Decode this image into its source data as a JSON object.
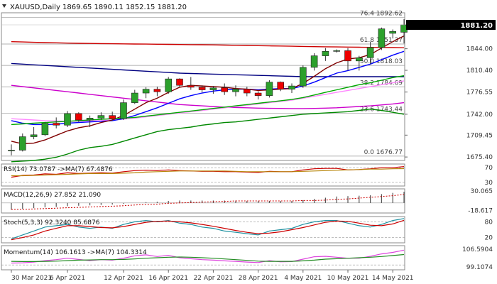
{
  "header": {
    "symbol_label": "XAUUSD,Daily",
    "ohlc_label": "1869.65 1890.11 1852.15 1881.20"
  },
  "chart_data": [
    {
      "type": "candlestick",
      "name": "price",
      "ylim": [
        1670,
        1900
      ],
      "y_ticks": [
        1675.4,
        1709.45,
        1742.0,
        1776.55,
        1810.4,
        1844.0
      ],
      "y_tick_labels": [
        "1675.40",
        "1709.45",
        "1742.00",
        "1776.55",
        "1810.40",
        "1844.00"
      ],
      "current_price_label": "1881.20",
      "current_price": 1881.2,
      "x_labels": [
        "30 Mar 2021",
        "6 Apr 2021",
        "12 Apr 2021",
        "16 Apr 2021",
        "22 Apr 2021",
        "28 Apr 2021",
        "4 May 2021",
        "10 May 2021",
        "14 May 2021"
      ],
      "x_label_bars": [
        0,
        5,
        10,
        14,
        18,
        22,
        26,
        30,
        34
      ],
      "candles": [
        [
          1686,
          1695,
          1678,
          1686
        ],
        [
          1686,
          1712,
          1684,
          1707
        ],
        [
          1707,
          1722,
          1703,
          1710
        ],
        [
          1710,
          1730,
          1708,
          1728
        ],
        [
          1728,
          1737,
          1720,
          1725
        ],
        [
          1725,
          1747,
          1722,
          1743
        ],
        [
          1743,
          1745,
          1730,
          1733
        ],
        [
          1733,
          1740,
          1722,
          1736
        ],
        [
          1736,
          1745,
          1733,
          1740
        ],
        [
          1740,
          1746,
          1732,
          1735
        ],
        [
          1735,
          1765,
          1733,
          1760
        ],
        [
          1760,
          1780,
          1758,
          1775
        ],
        [
          1775,
          1784,
          1767,
          1781
        ],
        [
          1781,
          1785,
          1770,
          1777
        ],
        [
          1777,
          1800,
          1774,
          1797
        ],
        [
          1797,
          1798,
          1785,
          1787
        ],
        [
          1787,
          1800,
          1780,
          1784
        ],
        [
          1784,
          1787,
          1776,
          1780
        ],
        [
          1780,
          1786,
          1774,
          1783
        ],
        [
          1783,
          1790,
          1772,
          1777
        ],
        [
          1777,
          1787,
          1770,
          1781
        ],
        [
          1781,
          1785,
          1770,
          1775
        ],
        [
          1775,
          1778,
          1765,
          1771
        ],
        [
          1771,
          1795,
          1768,
          1792
        ],
        [
          1792,
          1793,
          1778,
          1781
        ],
        [
          1781,
          1790,
          1775,
          1786
        ],
        [
          1786,
          1818,
          1783,
          1815
        ],
        [
          1815,
          1837,
          1810,
          1833
        ],
        [
          1833,
          1845,
          1825,
          1840
        ],
        [
          1840,
          1843,
          1838,
          1841
        ],
        [
          1841,
          1845,
          1810,
          1825
        ],
        [
          1825,
          1833,
          1810,
          1830
        ],
        [
          1830,
          1855,
          1820,
          1846
        ],
        [
          1846,
          1877,
          1842,
          1875
        ],
        [
          1868,
          1874,
          1860,
          1871
        ],
        [
          1869.65,
          1890.11,
          1852.15,
          1881.2
        ]
      ],
      "fibonacci": [
        {
          "label": "76.4 1892.62",
          "value": 1892.62
        },
        {
          "label": "61.8 1851.37",
          "value": 1851.37
        },
        {
          "label": "50.0 1818.03",
          "value": 1818.03
        },
        {
          "label": "38.2 1784.69",
          "value": 1784.69
        },
        {
          "label": "23.6 1743.44",
          "value": 1743.44
        },
        {
          "label": "0.0 1676.77",
          "value": 1676.77
        }
      ],
      "overlays": [
        {
          "color": "#000080",
          "values": [
            1821,
            1820,
            1819,
            1818,
            1817,
            1816,
            1815,
            1814,
            1813,
            1812,
            1811,
            1810,
            1809,
            1808,
            1807,
            1806,
            1805.5,
            1805,
            1804.5,
            1804,
            1803.5,
            1803,
            1802.5,
            1802,
            1801.5,
            1801,
            1800.5,
            1800.5,
            1800.5,
            1800.5,
            1800.5,
            1800.5,
            1800.5,
            1800.5,
            1800.5,
            1800.5
          ]
        },
        {
          "color": "#cc0000",
          "values": [
            1855,
            1854.5,
            1854,
            1853.6,
            1853.2,
            1852.8,
            1852.5,
            1852.2,
            1852,
            1851.8,
            1851.6,
            1851.4,
            1851.2,
            1851,
            1850.8,
            1850.6,
            1850.4,
            1850.2,
            1850,
            1849.7,
            1849.4,
            1849.1,
            1848.8,
            1848.5,
            1848.2,
            1847.9,
            1847.6,
            1847.3,
            1847,
            1846.8,
            1846.6,
            1846.4,
            1846.2,
            1846,
            1845.8,
            1845.5
          ]
        },
        {
          "color": "#cc00cc",
          "values": [
            1787,
            1785,
            1783,
            1781,
            1779,
            1777,
            1775,
            1773,
            1771,
            1769,
            1767,
            1765,
            1763,
            1761,
            1759,
            1757,
            1756,
            1755,
            1754,
            1753,
            1752.5,
            1752,
            1751.5,
            1751.2,
            1751,
            1750.8,
            1750.8,
            1751,
            1751.5,
            1752,
            1753,
            1754,
            1755,
            1756.5,
            1758,
            1760
          ]
        },
        {
          "color": "#ff88ff",
          "values": [
            1735,
            1734,
            1733,
            1732,
            1731.5,
            1731,
            1731,
            1731.5,
            1732,
            1733,
            1734.5,
            1736,
            1738,
            1740,
            1742,
            1744,
            1746,
            1748,
            1750,
            1752,
            1754,
            1756,
            1758,
            1760,
            1762,
            1764,
            1767,
            1770,
            1773,
            1776,
            1779,
            1782,
            1785,
            1788,
            1791,
            1794
          ]
        },
        {
          "color": "#0000ff",
          "values": [
            1732,
            1728,
            1726,
            1726,
            1726.5,
            1728,
            1729,
            1730,
            1731,
            1732,
            1735,
            1740,
            1746,
            1752,
            1759,
            1766,
            1771,
            1775,
            1778,
            1780,
            1781,
            1781,
            1780,
            1781,
            1782,
            1782,
            1786,
            1792,
            1799,
            1806,
            1810,
            1815,
            1820,
            1827,
            1834,
            1840
          ]
        },
        {
          "color": "#800000",
          "values": [
            1700,
            1696,
            1697,
            1702,
            1709,
            1716,
            1721,
            1724,
            1729,
            1733,
            1740,
            1750,
            1760,
            1767,
            1776,
            1784,
            1787,
            1786,
            1785,
            1784,
            1782,
            1781,
            1779,
            1780,
            1781,
            1782,
            1790,
            1801,
            1813,
            1822,
            1828,
            1830,
            1835,
            1845,
            1855,
            1864
          ]
        },
        {
          "color": "#00aa00",
          "values": [
            1726,
            1727,
            1728,
            1729,
            1730,
            1731,
            1732,
            1733,
            1734,
            1735,
            1736,
            1737,
            1739,
            1741,
            1743,
            1745,
            1747,
            1749,
            1751,
            1753,
            1755,
            1757,
            1759,
            1761,
            1763,
            1765,
            1768,
            1772,
            1776,
            1780,
            1784,
            1788,
            1791,
            1795,
            1799,
            1802
          ]
        },
        {
          "color": "#008800",
          "values": [
            1668,
            1669,
            1670,
            1672,
            1675,
            1680,
            1686,
            1690,
            1692,
            1695,
            1700,
            1705,
            1710,
            1715,
            1718,
            1720,
            1722,
            1725,
            1727,
            1729,
            1730,
            1732,
            1734,
            1736,
            1738,
            1740,
            1742,
            1743,
            1744,
            1745,
            1746,
            1748,
            1750,
            1748,
            1745,
            1742
          ]
        }
      ]
    },
    {
      "type": "line",
      "name": "RSI(14)",
      "label": "RSI(14) 73.0787 ->MA(7) 67.4876",
      "ylim": [
        20,
        80
      ],
      "y_ticks": [
        30,
        70
      ],
      "y_tick_labels": [
        "30",
        "70"
      ],
      "level_lines": [
        30,
        70
      ],
      "series": [
        {
          "color": "#cc0000",
          "values": [
            44,
            49,
            50,
            53,
            52,
            56,
            54,
            55,
            56,
            55,
            59,
            62,
            63,
            62,
            64,
            62,
            61,
            60,
            60,
            59,
            59,
            58,
            57,
            60,
            59,
            59,
            64,
            67,
            68,
            68,
            64,
            65,
            67,
            70,
            70,
            73
          ]
        },
        {
          "color": "#b8860b",
          "values": [
            48,
            48,
            49,
            50,
            51,
            52,
            53,
            54,
            54,
            54,
            55,
            56,
            58,
            59,
            60,
            61,
            61,
            61,
            61,
            61,
            60,
            59,
            59,
            59,
            59,
            59,
            60,
            61,
            62,
            63,
            64,
            65,
            66,
            66,
            67,
            67.5
          ]
        }
      ]
    },
    {
      "type": "bar",
      "name": "MACD(12,26,9)",
      "label": "MACD(12,26,9) 27.852 21.090",
      "ylim": [
        -25,
        35
      ],
      "y_ticks": [
        30.065,
        -18.617
      ],
      "y_tick_labels": [
        "30.065",
        "-18.617"
      ],
      "values": [
        -17,
        -15,
        -13,
        -11,
        -10,
        -8,
        -7,
        -6,
        -5,
        -4,
        -2,
        0,
        2,
        3,
        5,
        6,
        6,
        6,
        6,
        6,
        6,
        5,
        5,
        5,
        5,
        5,
        7,
        10,
        13,
        16,
        17,
        18,
        19,
        22,
        25,
        27.852
      ],
      "signal": [
        -16,
        -16,
        -15,
        -14,
        -13,
        -12,
        -11,
        -10,
        -9,
        -8,
        -7,
        -5,
        -4,
        -3,
        -1,
        0,
        1,
        2,
        3,
        4,
        5,
        5,
        5,
        5,
        5,
        5,
        6,
        6,
        7,
        9,
        10,
        12,
        14,
        16,
        18,
        21.09
      ]
    },
    {
      "type": "line",
      "name": "Stoch(5,3,3)",
      "label": "Stoch(5,3,3) 92.3240 85.6876",
      "ylim": [
        0,
        100
      ],
      "y_ticks": [
        20,
        80
      ],
      "y_tick_labels": [
        "20",
        "80"
      ],
      "level_lines": [
        20,
        80
      ],
      "series": [
        {
          "color": "#1e90a0",
          "values": [
            15,
            30,
            45,
            60,
            65,
            70,
            60,
            55,
            60,
            55,
            70,
            80,
            85,
            80,
            85,
            75,
            70,
            60,
            55,
            45,
            40,
            35,
            30,
            45,
            50,
            55,
            70,
            80,
            85,
            85,
            75,
            65,
            60,
            70,
            85,
            92.3
          ]
        },
        {
          "color": "#cc0000",
          "values": [
            12,
            20,
            30,
            45,
            55,
            65,
            65,
            62,
            58,
            57,
            62,
            70,
            78,
            82,
            83,
            80,
            76,
            70,
            63,
            55,
            47,
            40,
            35,
            37,
            42,
            50,
            58,
            68,
            78,
            83,
            82,
            75,
            67,
            65,
            72,
            85.7
          ]
        }
      ]
    },
    {
      "type": "line",
      "name": "Momentum(14)",
      "label": "Momentum(14) 106.1613 ->MA(7) 104.3314",
      "ylim": [
        98,
        108
      ],
      "y_ticks": [
        106.5904,
        99.1074
      ],
      "y_tick_labels": [
        "106.5904",
        "99.1074"
      ],
      "level_lines": [
        100
      ],
      "series": [
        {
          "color": "#dd44dd",
          "values": [
            100.8,
            100.9,
            101.2,
            101.8,
            102.2,
            102.8,
            102.3,
            101.8,
            102.2,
            102,
            102.8,
            103.8,
            104.2,
            103.5,
            104,
            103,
            102.6,
            102.2,
            102,
            101.7,
            101.5,
            101.2,
            101,
            101.8,
            101.3,
            101.4,
            102.4,
            103.4,
            103.6,
            103.2,
            102.8,
            102.8,
            103.6,
            104.6,
            105.2,
            106.16
          ]
        },
        {
          "color": "#228b22",
          "values": [
            101.5,
            101.4,
            101.4,
            101.5,
            101.6,
            101.8,
            102,
            102.1,
            102.2,
            102.2,
            102.3,
            102.5,
            102.8,
            103,
            103.2,
            103.3,
            103.2,
            103,
            102.8,
            102.5,
            102.2,
            101.9,
            101.6,
            101.5,
            101.5,
            101.5,
            101.7,
            102,
            102.4,
            102.6,
            102.8,
            103,
            103.2,
            103.5,
            103.9,
            104.33
          ]
        }
      ]
    }
  ],
  "colors": {
    "bull": "#2ca02c",
    "bear": "#ee0000",
    "fib": "#999999",
    "text": "#333333"
  }
}
